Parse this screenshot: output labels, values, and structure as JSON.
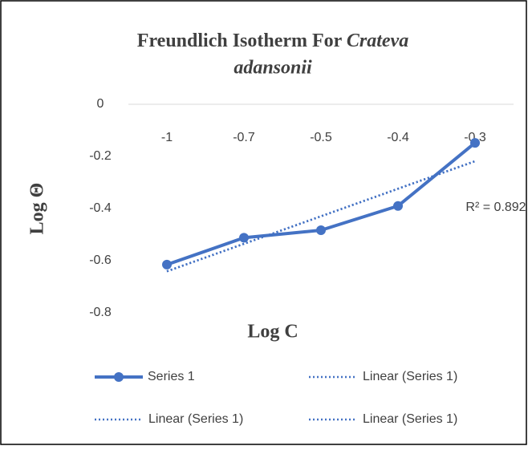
{
  "chart_data": {
    "type": "line",
    "title": {
      "plain": "Freundlich Isotherm For",
      "italic": [
        "Crateva",
        "adansonii"
      ]
    },
    "x_label": "Log C",
    "y_label": "Log Θ",
    "categories": [
      "-1",
      "-0.7",
      "-0.5",
      "-0.4",
      "-0.3"
    ],
    "series": [
      {
        "name": "Series 1",
        "color": "#4472c4",
        "values": [
          -0.615,
          -0.512,
          -0.483,
          -0.39,
          -0.148
        ]
      }
    ],
    "trendlines": [
      {
        "name": "Linear (Series 1)",
        "r2": 0.892,
        "r2_label": "R² = 0.892"
      },
      {
        "name": "Linear (Series 1)"
      },
      {
        "name": "Linear (Series 1)"
      }
    ],
    "ylim": [
      -0.8,
      0
    ],
    "yticks": [
      0,
      -0.2,
      -0.4,
      -0.6,
      -0.8
    ],
    "grid": false
  }
}
